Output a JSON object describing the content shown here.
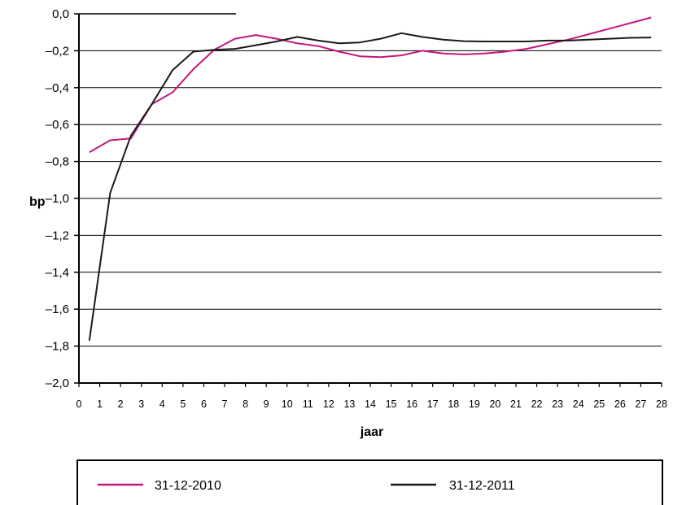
{
  "chart_data": {
    "type": "line",
    "xlabel": "jaar",
    "ylabel": "bp",
    "xlim": [
      0,
      28
    ],
    "ylim": [
      -2.0,
      0.0
    ],
    "grid": "horizontal",
    "legend_position": "bottom",
    "x_ticks": [
      "0",
      "1",
      "2",
      "3",
      "4",
      "5",
      "6",
      "7",
      "8",
      "9",
      "10",
      "11",
      "12",
      "13",
      "14",
      "15",
      "16",
      "17",
      "18",
      "19",
      "20",
      "21",
      "22",
      "23",
      "24",
      "25",
      "26",
      "27",
      "28"
    ],
    "y_ticks": [
      {
        "value": 0.0,
        "label": "0,0"
      },
      {
        "value": -0.2,
        "label": "–0,2"
      },
      {
        "value": -0.4,
        "label": "–0,4"
      },
      {
        "value": -0.6,
        "label": "–0,6"
      },
      {
        "value": -0.8,
        "label": "–0,8"
      },
      {
        "value": -1.0,
        "label": "–1,0"
      },
      {
        "value": -1.2,
        "label": "–1,2"
      },
      {
        "value": -1.4,
        "label": "–1,4"
      },
      {
        "value": -1.6,
        "label": "–1,6"
      },
      {
        "value": -1.8,
        "label": "–1,8"
      },
      {
        "value": -2.0,
        "label": "–2,0"
      }
    ],
    "series": [
      {
        "name": "31-12-2010",
        "color": "#c4167f",
        "x": [
          0.5,
          1.5,
          2.5,
          3.5,
          4.5,
          5.5,
          6.5,
          7.5,
          8.5,
          9.5,
          10.5,
          11.5,
          12.5,
          13.5,
          14.5,
          15.5,
          16.5,
          17.5,
          18.5,
          19.5,
          20.5,
          21.5,
          22.5,
          23.5,
          24.5,
          25.5,
          26.5,
          27.5
        ],
        "values": [
          -0.75,
          -0.685,
          -0.675,
          -0.49,
          -0.425,
          -0.3,
          -0.195,
          -0.135,
          -0.115,
          -0.135,
          -0.16,
          -0.175,
          -0.205,
          -0.23,
          -0.235,
          -0.225,
          -0.2,
          -0.215,
          -0.22,
          -0.215,
          -0.205,
          -0.19,
          -0.165,
          -0.14,
          -0.11,
          -0.08,
          -0.05,
          -0.02
        ]
      },
      {
        "name": "31-12-2011",
        "color": "#1a1a1a",
        "x": [
          0.5,
          1.5,
          2.5,
          3.5,
          4.5,
          5.5,
          6.5,
          7.5,
          8.5,
          9.5,
          10.5,
          11.5,
          12.5,
          13.5,
          14.5,
          15.5,
          16.5,
          17.5,
          18.5,
          19.5,
          20.5,
          21.5,
          22.5,
          23.5,
          24.5,
          25.5,
          26.5,
          27.5
        ],
        "values": [
          -1.77,
          -0.97,
          -0.66,
          -0.49,
          -0.305,
          -0.205,
          -0.195,
          -0.19,
          -0.17,
          -0.15,
          -0.125,
          -0.145,
          -0.16,
          -0.155,
          -0.135,
          -0.105,
          -0.125,
          -0.14,
          -0.148,
          -0.15,
          -0.15,
          -0.15,
          -0.145,
          -0.145,
          -0.14,
          -0.135,
          -0.13,
          -0.128
        ]
      }
    ]
  }
}
